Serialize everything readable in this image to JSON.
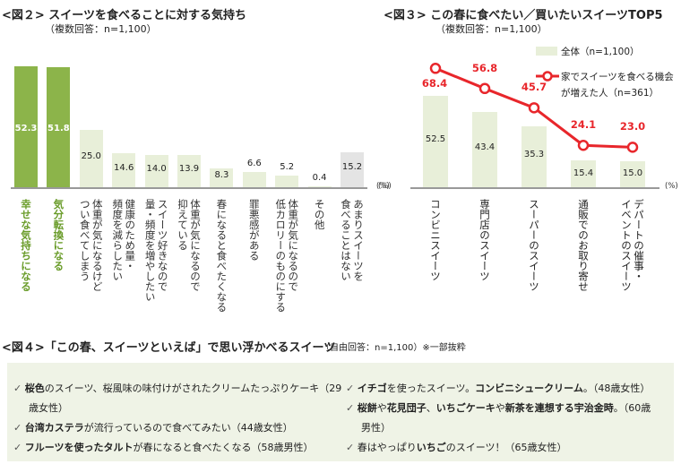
{
  "fig2": {
    "title": "<図２> スイーツを食べることに対する気持ち",
    "subtitle": "（複数回答：n=1,100）",
    "unit": "(%)"
  },
  "fig3": {
    "title": "<図３> この春に食べたい／買いたいスイーツTOP5",
    "subtitle": "（複数回答：n=1,100）",
    "unit": "(%)",
    "legend_bar": "全体（n=1,100）",
    "legend_line_1": "家でスイーツを食べる機会",
    "legend_line_2": "が増えた人（n=361）"
  },
  "fig4": {
    "title": "<図４>「この春、スイーツといえば」で思い浮かべるスイーツ",
    "note": "（自由回答：n=1,100）※一部抜粋",
    "check": "✓",
    "items_left": [
      {
        "segments": [
          {
            "text": "桜色",
            "bold": true
          },
          {
            "text": "のスイーツ、桜風味の味付けがされたクリームたっぷりケーキ（29",
            "bold": false
          }
        ],
        "cont": "歳女性）"
      },
      {
        "segments": [
          {
            "text": "台湾カステラ",
            "bold": true
          },
          {
            "text": "が流行っているので食べてみたい（44歳女性）",
            "bold": false
          }
        ]
      },
      {
        "segments": [
          {
            "text": "フルーツを使ったタルト",
            "bold": true
          },
          {
            "text": "が春になると食べたくなる（58歳男性）",
            "bold": false
          }
        ]
      }
    ],
    "items_right": [
      {
        "segments": [
          {
            "text": "イチゴ",
            "bold": true
          },
          {
            "text": "を使ったスイーツ。",
            "bold": false
          },
          {
            "text": "コンビニシュークリーム",
            "bold": true
          },
          {
            "text": "。（48歳女性）",
            "bold": false
          }
        ]
      },
      {
        "segments": [
          {
            "text": "桜餅",
            "bold": true
          },
          {
            "text": "や",
            "bold": false
          },
          {
            "text": "花見団子",
            "bold": true
          },
          {
            "text": "、",
            "bold": false
          },
          {
            "text": "いちごケーキ",
            "bold": true
          },
          {
            "text": "や",
            "bold": false
          },
          {
            "text": "新茶を連想する宇治金時",
            "bold": true
          },
          {
            "text": "。（60歳",
            "bold": false
          }
        ],
        "cont": "男性）"
      },
      {
        "segments": [
          {
            "text": "春はやっぱり",
            "bold": false
          },
          {
            "text": "いちご",
            "bold": true
          },
          {
            "text": "のスイーツ！（65歳女性）",
            "bold": false
          }
        ]
      }
    ]
  },
  "chart_data": [
    {
      "type": "bar",
      "title": "<図２> スイーツを食べることに対する気持ち",
      "unit": "%",
      "categories": [
        "幸せな気持ちになる",
        "気分転換になる",
        "体重が気になるけど\nつい食べてしまう",
        "健康のため量・\n頻度を減らしたい",
        "スイーツ好きなので\n量・頻度を増やしたい",
        "体重が気になるので\n抑えている",
        "春になると食べたくなる",
        "罪悪感がある",
        "体重が気になるので\n低カロリーのものにする",
        "その他",
        "あまりスイーツを\n食べることはない"
      ],
      "values": [
        52.3,
        51.8,
        25.0,
        14.6,
        14.0,
        13.9,
        8.3,
        6.6,
        5.2,
        0.4,
        15.2
      ],
      "colors": [
        "#8cb44a",
        "#8cb44a",
        "#e8efd9",
        "#e8efd9",
        "#e8efd9",
        "#e8efd9",
        "#e8efd9",
        "#e8efd9",
        "#e8efd9",
        "#e8efd9",
        "#e4e4e4"
      ],
      "label_colors": [
        "#6a9c2a",
        "#6a9c2a",
        "#333",
        "#333",
        "#333",
        "#333",
        "#333",
        "#333",
        "#333",
        "#333",
        "#333"
      ],
      "ylim": [
        0,
        60
      ]
    },
    {
      "type": "bar+line",
      "title": "<図３> この春に食べたい／買いたいスイーツTOP5",
      "unit": "%",
      "categories": [
        "コンビニスイーツ",
        "専門店のスイーツ",
        "スーパーのスイーツ",
        "通販でのお取り寄せ",
        "デパートの催事・\nイベントのスイーツ"
      ],
      "series": [
        {
          "name": "全体（n=1,100）",
          "type": "bar",
          "values": [
            52.5,
            43.4,
            35.3,
            15.4,
            15.0
          ],
          "color": "#e8efd9"
        },
        {
          "name": "家でスイーツを食べる機会が増えた人（n=361）",
          "type": "line",
          "values": [
            68.4,
            56.8,
            45.7,
            24.1,
            23.0
          ],
          "color": "#e8262b"
        }
      ],
      "ylim": [
        0,
        75
      ]
    }
  ]
}
